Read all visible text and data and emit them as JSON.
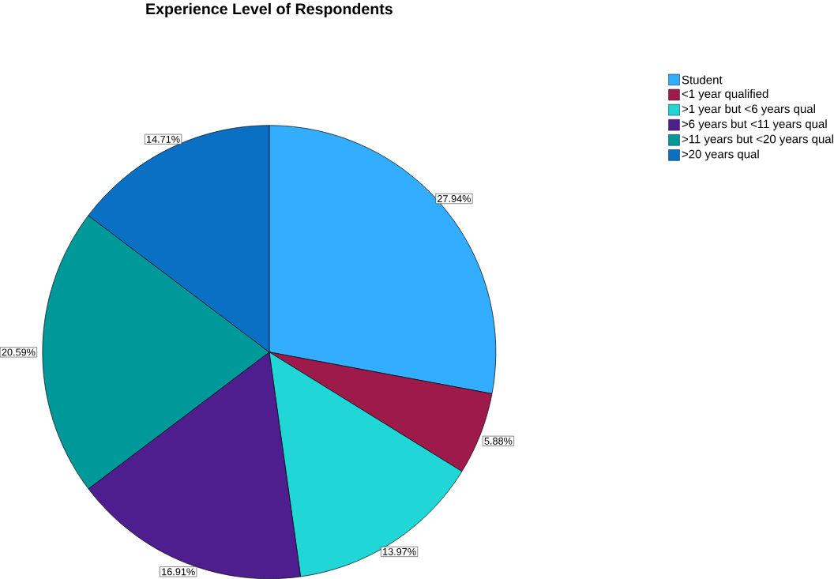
{
  "chart_data": {
    "type": "pie",
    "title": "Experience Level of Respondents",
    "categories": [
      "Student",
      "<1 year qualified",
      ">1 year but <6 years qual",
      ">6 years but <11 years qual",
      ">11 years but <20 years qual",
      ">20 years qual"
    ],
    "values": [
      27.94,
      5.88,
      13.97,
      16.91,
      20.59,
      14.71
    ],
    "colors": [
      "#33adff",
      "#9e1a4a",
      "#21d6d6",
      "#4e1e8f",
      "#009999",
      "#0a70c4"
    ],
    "value_labels": [
      "27.94%",
      "5.88%",
      "13.97%",
      "16.91%",
      "20.59%",
      "14.71%"
    ],
    "legend": "top right"
  }
}
